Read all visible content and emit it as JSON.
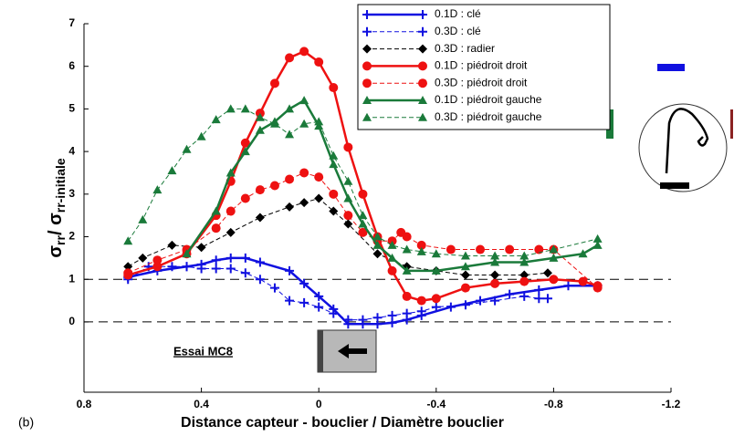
{
  "chart_data": {
    "type": "line",
    "x_label": "Distance capteur - bouclier / Diamètre bouclier",
    "y_label": [
      "σ",
      "rr",
      "/ σ",
      "rr-initiale"
    ],
    "panel_label": "(b)",
    "annotation": "Essai MC8",
    "xlim": [
      0.8,
      -1.2
    ],
    "xticks": [
      0.8,
      0.4,
      0,
      -0.4,
      -0.8,
      -1.2
    ],
    "ylim": [
      -1.65,
      7
    ],
    "yticks": [
      0,
      1,
      2,
      3,
      4,
      5,
      6,
      7
    ],
    "hlines": [
      0,
      1
    ],
    "series": [
      {
        "name": "0.1D : clé",
        "color": "#1010e0",
        "marker": "plus",
        "line_width": 2.5,
        "dashed": false,
        "x": [
          0.65,
          0.55,
          0.45,
          0.4,
          0.35,
          0.3,
          0.25,
          0.2,
          0.1,
          0.05,
          0,
          -0.05,
          -0.1,
          -0.15,
          -0.2,
          -0.25,
          -0.3,
          -0.35,
          -0.45,
          -0.55,
          -0.65,
          -0.75,
          -0.85,
          -0.95
        ],
        "values": [
          1.05,
          1.2,
          1.3,
          1.35,
          1.45,
          1.5,
          1.5,
          1.4,
          1.2,
          0.9,
          0.6,
          0.3,
          -0.05,
          -0.05,
          -0.05,
          -0.02,
          0.05,
          0.15,
          0.35,
          0.5,
          0.65,
          0.75,
          0.85,
          0.85
        ]
      },
      {
        "name": "0.3D : clé",
        "color": "#1010e0",
        "marker": "plus",
        "line_width": 1,
        "dashed": true,
        "x": [
          0.65,
          0.58,
          0.5,
          0.45,
          0.4,
          0.35,
          0.3,
          0.25,
          0.2,
          0.15,
          0.1,
          0.05,
          0,
          -0.05,
          -0.1,
          -0.15,
          -0.2,
          -0.25,
          -0.3,
          -0.35,
          -0.4,
          -0.5,
          -0.6,
          -0.7,
          -0.75,
          -0.78
        ],
        "values": [
          1.0,
          1.3,
          1.3,
          1.3,
          1.25,
          1.25,
          1.25,
          1.15,
          1.0,
          0.8,
          0.5,
          0.45,
          0.35,
          0.2,
          0.05,
          0.05,
          0.1,
          0.15,
          0.2,
          0.25,
          0.35,
          0.4,
          0.5,
          0.6,
          0.55,
          0.55
        ]
      },
      {
        "name": "0.3D : radier",
        "color": "#000000",
        "marker": "diamond",
        "line_width": 1,
        "dashed": true,
        "x": [
          0.65,
          0.6,
          0.5,
          0.4,
          0.3,
          0.2,
          0.1,
          0.05,
          0,
          -0.05,
          -0.1,
          -0.2,
          -0.3,
          -0.4,
          -0.5,
          -0.6,
          -0.7,
          -0.78
        ],
        "values": [
          1.3,
          1.5,
          1.8,
          1.75,
          2.1,
          2.45,
          2.7,
          2.8,
          2.9,
          2.6,
          2.3,
          1.6,
          1.3,
          1.2,
          1.1,
          1.1,
          1.1,
          1.15
        ]
      },
      {
        "name": "0.1D : piédroit droit",
        "color": "#ee1111",
        "marker": "circle",
        "line_width": 2.5,
        "dashed": false,
        "x": [
          0.65,
          0.55,
          0.45,
          0.35,
          0.3,
          0.25,
          0.2,
          0.15,
          0.1,
          0.05,
          0,
          -0.05,
          -0.1,
          -0.15,
          -0.2,
          -0.25,
          -0.3,
          -0.35,
          -0.4,
          -0.5,
          -0.6,
          -0.7,
          -0.8,
          -0.9,
          -0.95
        ],
        "values": [
          1.1,
          1.3,
          1.6,
          2.5,
          3.3,
          4.2,
          4.9,
          5.6,
          6.2,
          6.35,
          6.1,
          5.5,
          4.1,
          3.0,
          2.0,
          1.2,
          0.6,
          0.5,
          0.55,
          0.8,
          0.9,
          0.95,
          1.0,
          0.95,
          0.85
        ]
      },
      {
        "name": "0.3D : piédroit droit",
        "color": "#ee1111",
        "marker": "circle",
        "line_width": 1,
        "dashed": true,
        "x": [
          0.65,
          0.55,
          0.45,
          0.35,
          0.3,
          0.25,
          0.2,
          0.15,
          0.1,
          0.05,
          0,
          -0.05,
          -0.1,
          -0.15,
          -0.2,
          -0.25,
          -0.28,
          -0.3,
          -0.35,
          -0.45,
          -0.55,
          -0.65,
          -0.75,
          -0.8,
          -0.95
        ],
        "values": [
          1.15,
          1.45,
          1.7,
          2.2,
          2.6,
          2.9,
          3.1,
          3.2,
          3.35,
          3.5,
          3.4,
          3.0,
          2.5,
          2.1,
          1.9,
          1.9,
          2.1,
          2.0,
          1.8,
          1.7,
          1.7,
          1.7,
          1.7,
          1.7,
          0.8
        ]
      },
      {
        "name": "0.1D : piédroit gauche",
        "color": "#1a7a3a",
        "marker": "triangle",
        "line_width": 2.5,
        "dashed": false,
        "x": [
          0.45,
          0.35,
          0.3,
          0.25,
          0.2,
          0.15,
          0.1,
          0.05,
          0,
          -0.05,
          -0.1,
          -0.15,
          -0.2,
          -0.25,
          -0.3,
          -0.4,
          -0.5,
          -0.6,
          -0.7,
          -0.8,
          -0.9,
          -0.95
        ],
        "values": [
          1.6,
          2.6,
          3.5,
          4.0,
          4.5,
          4.7,
          5.0,
          5.2,
          4.6,
          3.7,
          2.9,
          2.3,
          1.8,
          1.5,
          1.2,
          1.2,
          1.3,
          1.4,
          1.4,
          1.5,
          1.6,
          1.8
        ]
      },
      {
        "name": "0.3D : piédroit gauche",
        "color": "#1a7a3a",
        "marker": "triangle",
        "line_width": 1,
        "dashed": true,
        "x": [
          0.65,
          0.6,
          0.55,
          0.5,
          0.45,
          0.4,
          0.35,
          0.3,
          0.25,
          0.2,
          0.15,
          0.1,
          0.05,
          0,
          -0.05,
          -0.1,
          -0.15,
          -0.2,
          -0.25,
          -0.3,
          -0.35,
          -0.4,
          -0.5,
          -0.6,
          -0.7,
          -0.8,
          -0.95
        ],
        "values": [
          1.9,
          2.4,
          3.1,
          3.55,
          4.05,
          4.35,
          4.75,
          5.0,
          5.0,
          4.8,
          4.65,
          4.4,
          4.65,
          4.7,
          3.9,
          3.3,
          2.5,
          2.0,
          1.8,
          1.7,
          1.65,
          1.6,
          1.55,
          1.55,
          1.55,
          1.7,
          1.95
        ]
      }
    ]
  }
}
